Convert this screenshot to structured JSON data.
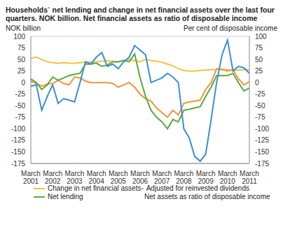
{
  "chart_data": {
    "type": "line",
    "title": "Households` net lending and change in net financial assets over the last four quarters. NOK billion. Net financial assets as ratio of disposable income",
    "y_label": "NOK billion",
    "y2_label": "Per cent of disposable income",
    "categories": [
      "March 2001",
      null,
      null,
      null,
      "March 2002",
      null,
      null,
      null,
      "March 2003",
      null,
      null,
      null,
      "March 2004",
      null,
      null,
      null,
      "March 2005",
      null,
      null,
      null,
      "March 2006",
      null,
      null,
      null,
      "March 2007",
      null,
      null,
      null,
      "March 2008",
      null,
      null,
      null,
      "March 2009",
      null,
      null,
      null,
      "March 2010",
      null,
      null,
      null,
      "March 2011"
    ],
    "series": [
      {
        "name": "Change in net financial assets",
        "color": "#f5c242",
        "values": [
          52,
          55,
          50,
          45,
          43,
          42,
          43,
          42,
          42,
          43,
          44,
          45,
          45,
          46,
          47,
          46,
          45,
          47,
          50,
          47,
          45,
          50,
          48,
          46,
          44,
          40,
          36,
          30,
          26,
          25,
          25,
          26,
          27,
          28,
          28,
          29,
          28,
          26,
          27,
          28,
          27
        ]
      },
      {
        "name": "Adjusted  for reinvested dividends",
        "color": "#f0963c",
        "values": [
          3,
          -2,
          -8,
          -3,
          -2,
          5,
          -2,
          -5,
          12,
          10,
          3,
          0,
          0,
          0,
          0,
          -2,
          -10,
          -5,
          0,
          -10,
          -25,
          -35,
          -40,
          -55,
          -65,
          -75,
          -60,
          -70,
          -45,
          -42,
          -40,
          -38,
          -15,
          0,
          30,
          28,
          25,
          28,
          8,
          -5,
          2
        ]
      },
      {
        "name": "Net lending",
        "color": "#5aaa3c",
        "values": [
          8,
          0,
          -15,
          -5,
          12,
          5,
          10,
          15,
          18,
          20,
          40,
          40,
          42,
          35,
          38,
          45,
          45,
          48,
          45,
          62,
          10,
          -30,
          -60,
          -75,
          -85,
          -100,
          -80,
          -85,
          -60,
          -58,
          -55,
          -52,
          -30,
          -10,
          15,
          15,
          15,
          20,
          0,
          -18,
          -12
        ]
      },
      {
        "name": "Net assets as ratio of disposable income",
        "color": "#3a8ed6",
        "axis": "y2",
        "values": [
          -8,
          -5,
          -60,
          -30,
          -5,
          -45,
          -35,
          -38,
          -42,
          0,
          45,
          40,
          55,
          65,
          35,
          40,
          30,
          45,
          55,
          80,
          70,
          60,
          0,
          5,
          10,
          20,
          12,
          0,
          -100,
          -120,
          -160,
          -170,
          -155,
          -80,
          0,
          60,
          92,
          25,
          35,
          32,
          20
        ]
      }
    ],
    "ylim": [
      -175,
      100
    ],
    "yticks": [
      -175,
      -150,
      -125,
      -100,
      -75,
      -50,
      -25,
      0,
      25,
      50,
      75,
      100
    ],
    "y2lim": [
      -175,
      100
    ],
    "y2ticks": [
      -175,
      -150,
      -125,
      -100,
      -75,
      -50,
      -25,
      0,
      25,
      50,
      75,
      100
    ],
    "grid": true,
    "legend": "bottom"
  }
}
